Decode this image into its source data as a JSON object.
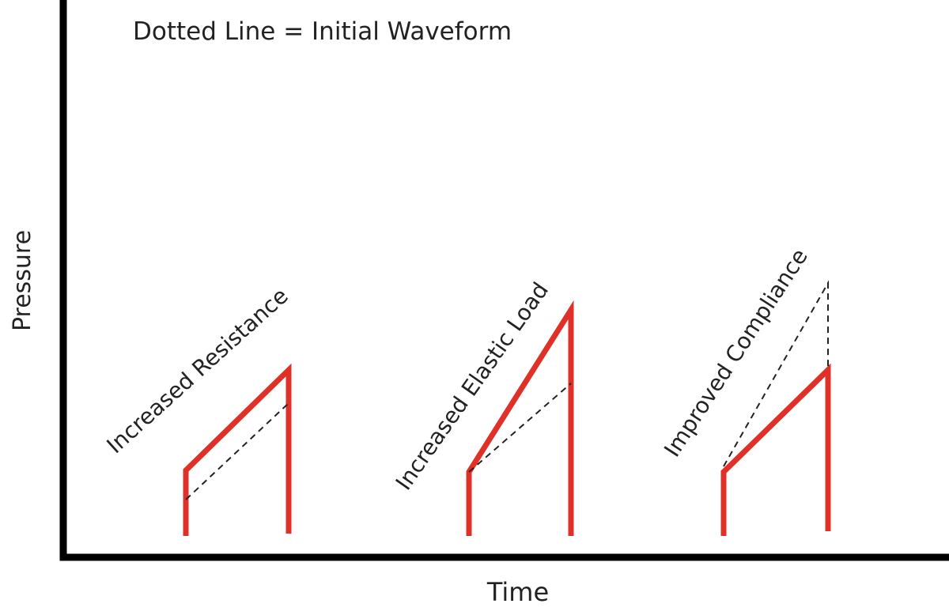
{
  "legend_note": "Dotted Line = Initial Waveform",
  "axes": {
    "y_label": "Pressure",
    "x_label": "Time"
  },
  "waveforms": [
    {
      "label": "Increased Resistance"
    },
    {
      "label": "Increased Elastic Load"
    },
    {
      "label": "Improved Compliance"
    }
  ]
}
